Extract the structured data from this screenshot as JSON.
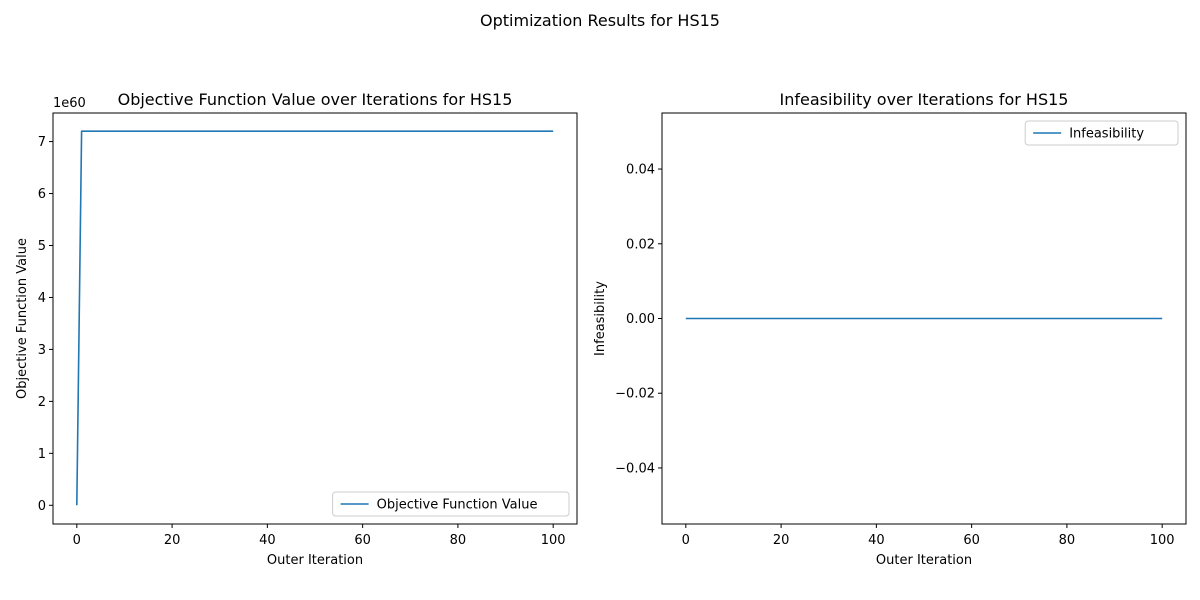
{
  "suptitle": "Optimization Results for HS15",
  "colors": {
    "series": "#1f77b4",
    "axes": "#000000",
    "legend_border": "#cccccc"
  },
  "chart_data": [
    {
      "type": "line",
      "title": "Objective Function Value over Iterations for HS15",
      "xlabel": "Outer Iteration",
      "ylabel": "Objective Function Value",
      "y_offset_label": "1e60",
      "y_scale_factor": 1e+60,
      "xlim": [
        -5,
        105
      ],
      "ylim": [
        -0.36,
        7.55
      ],
      "xticks": [
        0,
        20,
        40,
        60,
        80,
        100
      ],
      "xtick_labels": [
        "0",
        "20",
        "40",
        "60",
        "80",
        "100"
      ],
      "yticks": [
        0,
        1,
        2,
        3,
        4,
        5,
        6,
        7
      ],
      "ytick_labels": [
        "0",
        "1",
        "2",
        "3",
        "4",
        "5",
        "6",
        "7"
      ],
      "grid": false,
      "legend": "lower-right",
      "series": [
        {
          "name": "Objective Function Value",
          "x": [
            0,
            1,
            100
          ],
          "y": [
            0,
            7.2,
            7.2
          ]
        }
      ]
    },
    {
      "type": "line",
      "title": "Infeasibility over Iterations for HS15",
      "xlabel": "Outer Iteration",
      "ylabel": "Infeasibility",
      "xlim": [
        -5,
        105
      ],
      "ylim": [
        -0.055,
        0.055
      ],
      "xticks": [
        0,
        20,
        40,
        60,
        80,
        100
      ],
      "xtick_labels": [
        "0",
        "20",
        "40",
        "60",
        "80",
        "100"
      ],
      "yticks": [
        0.04,
        0.02,
        0.0,
        -0.02,
        -0.04
      ],
      "ytick_labels": [
        "0.04",
        "0.02",
        "0.00",
        "−0.02",
        "−0.04"
      ],
      "grid": false,
      "legend": "upper-right",
      "series": [
        {
          "name": "Infeasibility",
          "x": [
            0,
            100
          ],
          "y": [
            0,
            0
          ]
        }
      ]
    }
  ]
}
